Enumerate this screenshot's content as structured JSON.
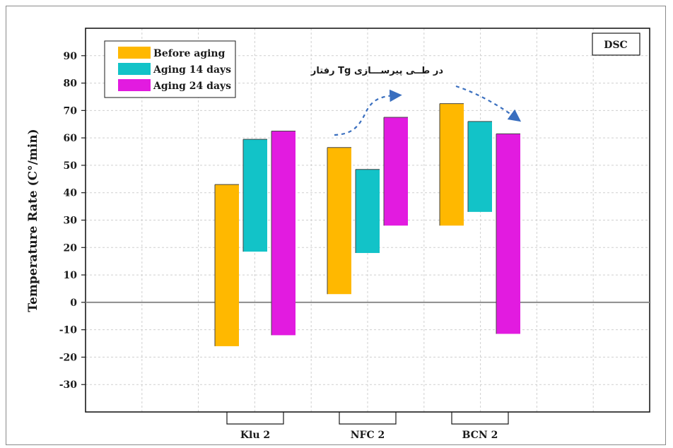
{
  "chart_data": {
    "type": "bar",
    "subtype": "floating-range",
    "badge": "DSC",
    "ylabel": "Temperature Rate  (C°/min)",
    "ylim": [
      -40,
      100
    ],
    "yticks": [
      90,
      80,
      70,
      60,
      50,
      40,
      30,
      20,
      10,
      0,
      -10,
      -20,
      -30
    ],
    "grid": true,
    "legend_position": "top-left",
    "annotation": "رفتار  Tg در طــی پیرســـازی",
    "categories": [
      "Klu 2",
      "NFC 2",
      "BCN 2"
    ],
    "series": [
      {
        "name": "Before aging",
        "color": "#FFB800",
        "ranges": [
          [
            -16,
            43
          ],
          [
            3,
            56.5
          ],
          [
            28,
            72.5
          ]
        ]
      },
      {
        "name": "Aging 14 days",
        "color": "#12C3C8",
        "ranges": [
          [
            18.5,
            59.5
          ],
          [
            18,
            48.5
          ],
          [
            33,
            66
          ]
        ]
      },
      {
        "name": "Aging 24 days",
        "color": "#E21BE0",
        "ranges": [
          [
            -12,
            62.5
          ],
          [
            28,
            67.5
          ],
          [
            -11.5,
            61.5
          ]
        ]
      }
    ]
  }
}
